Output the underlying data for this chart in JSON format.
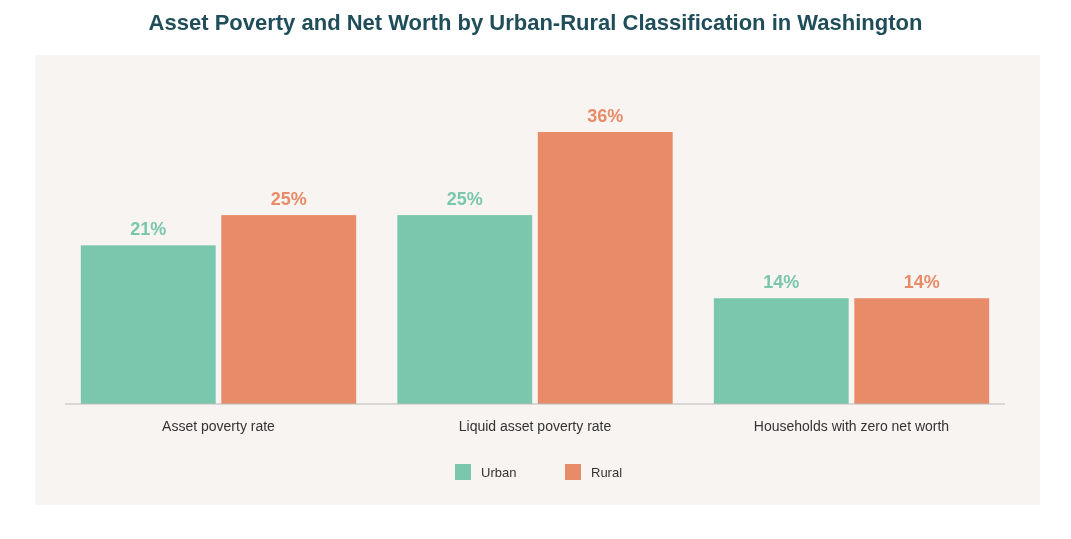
{
  "chart_data": {
    "type": "bar",
    "title": "Asset Poverty and Net Worth by Urban-Rural Classification in Washington",
    "categories": [
      "Asset poverty rate",
      "Liquid asset poverty rate",
      "Households with zero net worth"
    ],
    "series": [
      {
        "name": "Urban",
        "color": "#7ac7ae",
        "values": [
          21,
          25,
          14
        ],
        "value_labels": [
          "21%",
          "25%",
          "14%"
        ]
      },
      {
        "name": "Rural",
        "color": "#e88b68",
        "values": [
          25,
          36,
          14
        ],
        "value_labels": [
          "25%",
          "36%",
          "14%"
        ]
      }
    ],
    "legend": "bottom"
  }
}
